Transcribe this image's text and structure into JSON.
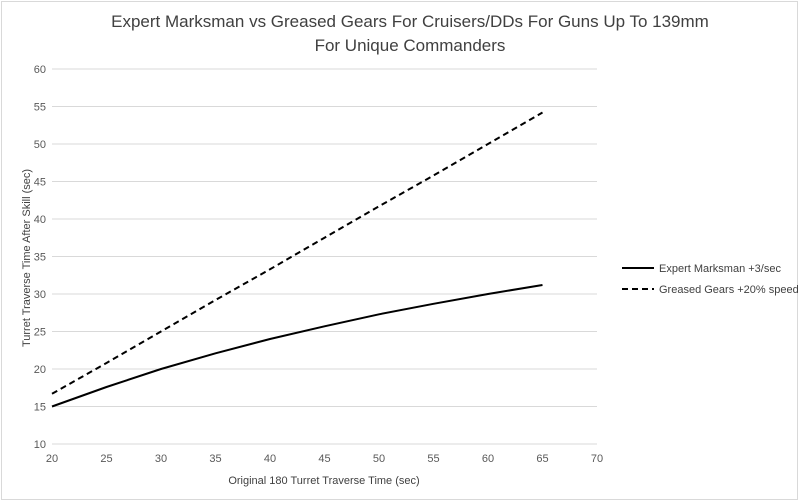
{
  "chart_data": {
    "type": "line",
    "title_lines": [
      "Expert Marksman vs Greased Gears For Cruisers/DDs For Guns Up To 139mm",
      "For Unique Commanders"
    ],
    "xlabel": "Original 180 Turret Traverse Time (sec)",
    "ylabel": "Turret Traverse Time After Skill (sec)",
    "xlim": [
      20,
      70
    ],
    "ylim": [
      10,
      60
    ],
    "xticks": [
      20,
      25,
      30,
      35,
      40,
      45,
      50,
      55,
      60,
      65,
      70
    ],
    "yticks": [
      10,
      15,
      20,
      25,
      30,
      35,
      40,
      45,
      50,
      55,
      60
    ],
    "grid": "horizontal",
    "legend_position": "right",
    "x": [
      20,
      25,
      30,
      35,
      40,
      45,
      50,
      55,
      60,
      65
    ],
    "series": [
      {
        "name": "Expert Marksman +3/sec",
        "style": "solid",
        "color": "#000000",
        "values": [
          15.0,
          17.6,
          20.0,
          22.1,
          24.0,
          25.7,
          27.3,
          28.7,
          30.0,
          31.2
        ]
      },
      {
        "name": "Greased Gears +20% speed",
        "style": "dashed",
        "color": "#000000",
        "values": [
          16.7,
          20.8,
          25.0,
          29.2,
          33.3,
          37.5,
          41.7,
          45.8,
          50.0,
          54.2
        ]
      }
    ]
  }
}
